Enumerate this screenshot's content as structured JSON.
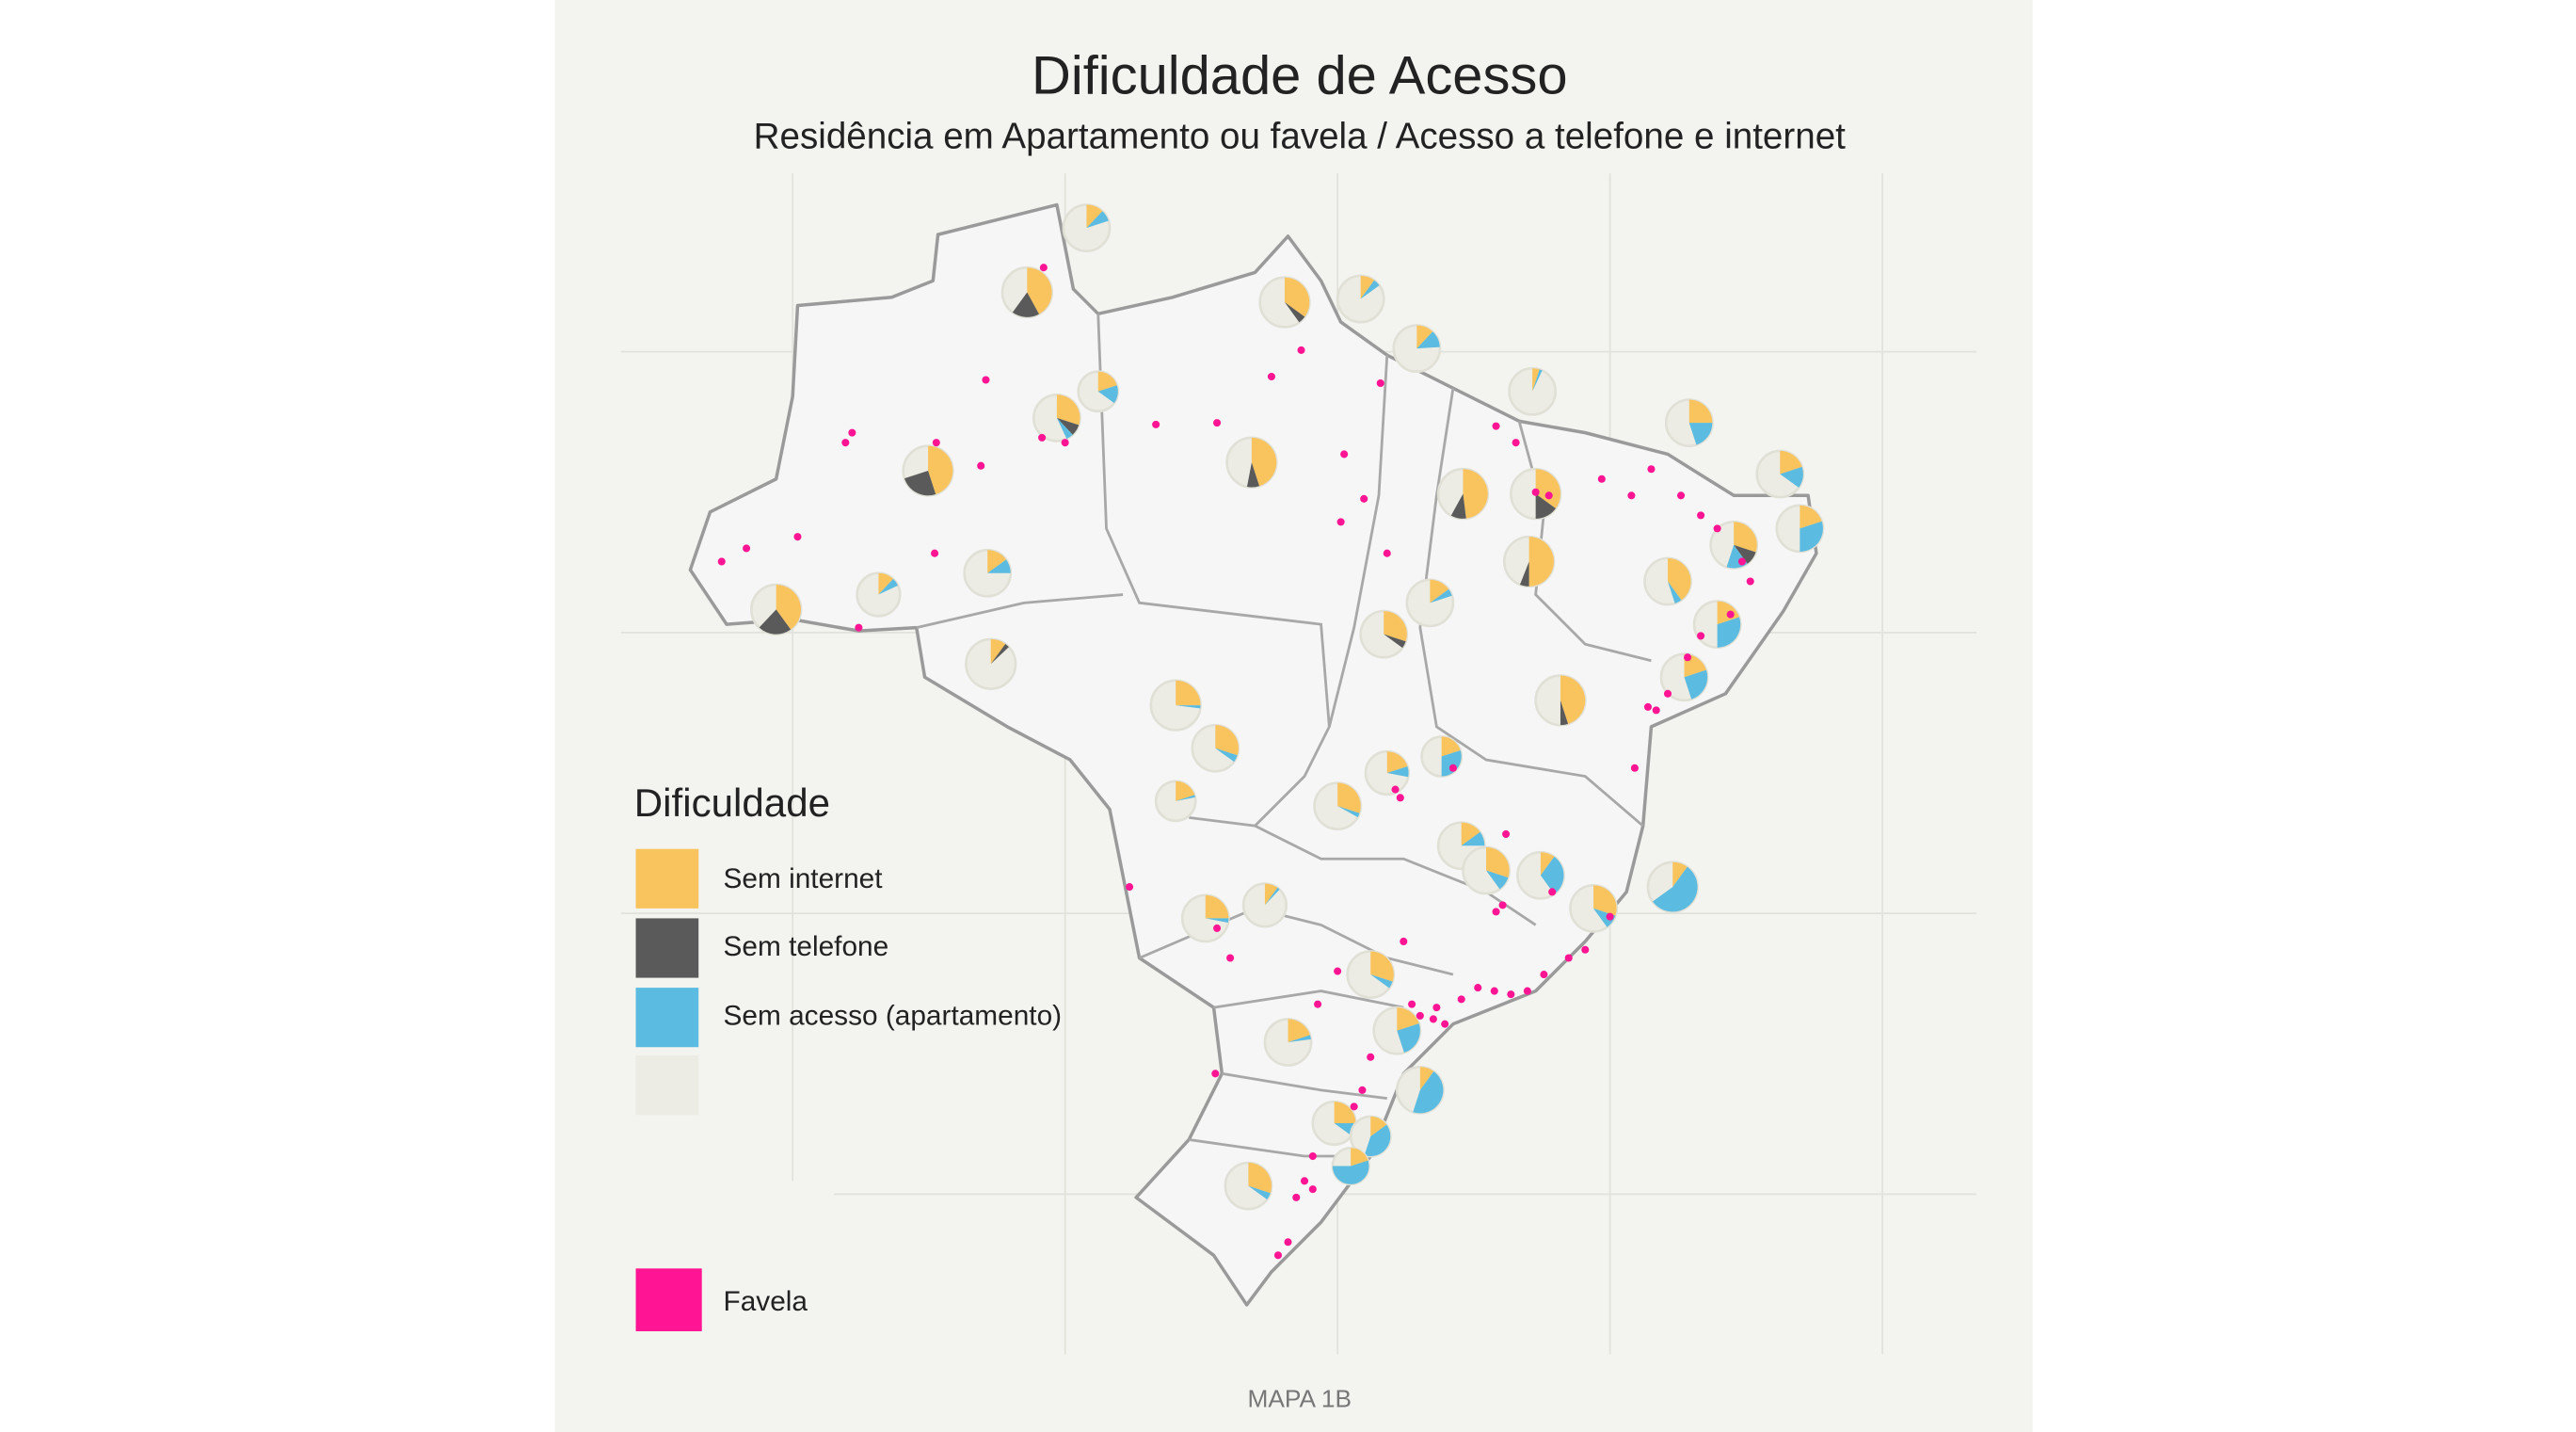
{
  "header": {
    "title": "Dificuldade de Acesso",
    "subtitle": "Residência em Apartamento ou favela / Acesso a telefone e internet"
  },
  "legend": {
    "title": "Dificuldade",
    "items": [
      "Sem internet",
      "Sem telefone",
      "Sem acesso (apartamento)"
    ],
    "favela": "Favela"
  },
  "caption": "MAPA 1B"
}
